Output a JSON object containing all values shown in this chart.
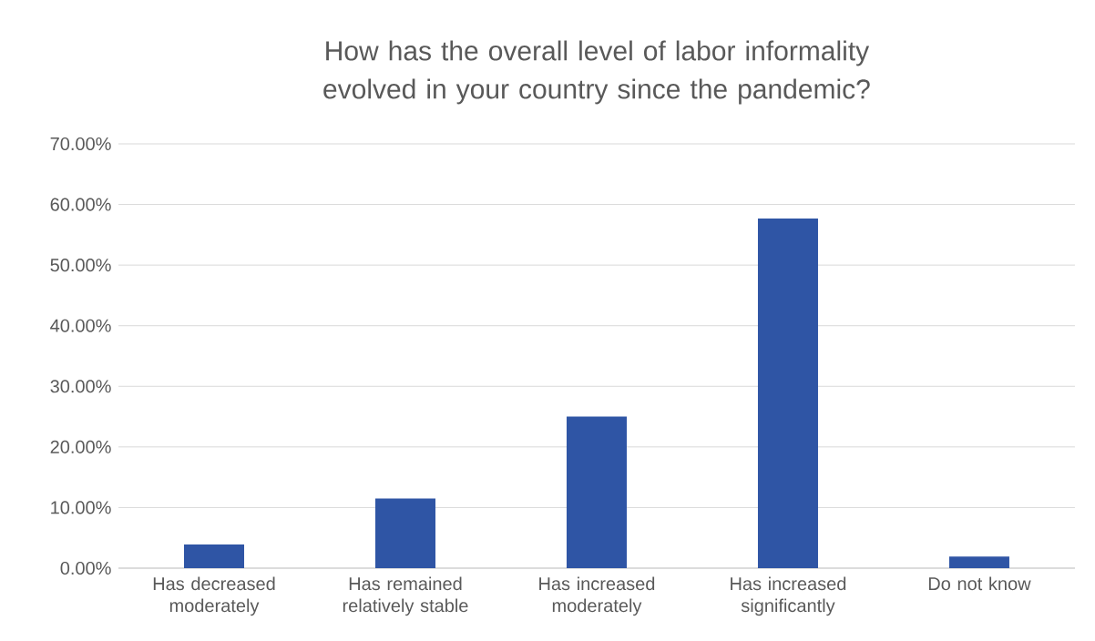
{
  "chart_data": {
    "type": "bar",
    "title": "How has the overall level of labor informality evolved in your country since the pandemic?",
    "categories": [
      "Has decreased moderately",
      "Has remained relatively stable",
      "Has increased moderately",
      "Has increased significantly",
      "Do not know"
    ],
    "values": [
      3.9,
      11.5,
      25.0,
      57.7,
      1.9
    ],
    "color": "#2f55a5",
    "ylim": [
      0,
      70
    ],
    "yticks": [
      {
        "value": 0,
        "label": "0.00%"
      },
      {
        "value": 10,
        "label": "10.00%"
      },
      {
        "value": 20,
        "label": "20.00%"
      },
      {
        "value": 30,
        "label": "30.00%"
      },
      {
        "value": 40,
        "label": "40.00%"
      },
      {
        "value": 50,
        "label": "50.00%"
      },
      {
        "value": 60,
        "label": "60.00%"
      },
      {
        "value": 70,
        "label": "70.00%"
      }
    ],
    "grid": "y"
  }
}
